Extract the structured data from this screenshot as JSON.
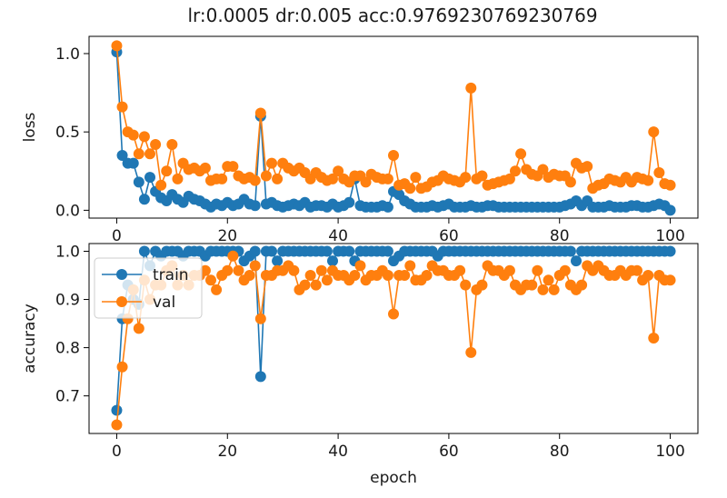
{
  "figure": {
    "title": "lr:0.0005 dr:0.005 acc:0.9769230769230769"
  },
  "colors": {
    "train": "#1f77b4",
    "val": "#ff7f0e",
    "axes": "#000000",
    "text": "#1a1a1a"
  },
  "chart_data": [
    {
      "type": "line",
      "markers": "circle",
      "title": "lr:0.0005 dr:0.005 acc:0.9769230769230769",
      "xlabel": "",
      "ylabel": "loss",
      "xlim": [
        -5,
        105
      ],
      "ylim": [
        -0.05,
        1.11
      ],
      "xticks": [
        0,
        20,
        40,
        60,
        80,
        100
      ],
      "yticks": [
        0.0,
        0.5,
        1.0
      ],
      "xtick_labels": [
        "0",
        "20",
        "40",
        "60",
        "80",
        "100"
      ],
      "ytick_labels": [
        "0.0",
        "0.5",
        "1.0"
      ],
      "grid": false,
      "legend": false,
      "series": [
        {
          "name": "train",
          "color": "#1f77b4",
          "values": [
            1.01,
            0.35,
            0.3,
            0.3,
            0.18,
            0.07,
            0.21,
            0.12,
            0.08,
            0.06,
            0.1,
            0.07,
            0.05,
            0.09,
            0.07,
            0.06,
            0.04,
            0.02,
            0.04,
            0.03,
            0.05,
            0.03,
            0.04,
            0.07,
            0.04,
            0.03,
            0.6,
            0.04,
            0.05,
            0.03,
            0.02,
            0.03,
            0.04,
            0.03,
            0.05,
            0.02,
            0.03,
            0.03,
            0.02,
            0.04,
            0.02,
            0.03,
            0.05,
            0.2,
            0.03,
            0.02,
            0.02,
            0.02,
            0.03,
            0.02,
            0.12,
            0.1,
            0.06,
            0.04,
            0.02,
            0.02,
            0.02,
            0.03,
            0.02,
            0.03,
            0.04,
            0.02,
            0.02,
            0.02,
            0.03,
            0.02,
            0.02,
            0.03,
            0.03,
            0.02,
            0.02,
            0.02,
            0.02,
            0.02,
            0.02,
            0.02,
            0.02,
            0.02,
            0.02,
            0.02,
            0.02,
            0.03,
            0.04,
            0.06,
            0.03,
            0.06,
            0.02,
            0.02,
            0.02,
            0.03,
            0.02,
            0.02,
            0.02,
            0.03,
            0.03,
            0.02,
            0.02,
            0.03,
            0.04,
            0.03,
            0.0
          ]
        },
        {
          "name": "val",
          "color": "#ff7f0e",
          "values": [
            1.05,
            0.66,
            0.5,
            0.48,
            0.36,
            0.47,
            0.36,
            0.42,
            0.16,
            0.25,
            0.42,
            0.2,
            0.3,
            0.26,
            0.27,
            0.25,
            0.27,
            0.19,
            0.2,
            0.2,
            0.28,
            0.28,
            0.22,
            0.2,
            0.21,
            0.19,
            0.62,
            0.22,
            0.3,
            0.2,
            0.3,
            0.27,
            0.25,
            0.27,
            0.24,
            0.2,
            0.24,
            0.21,
            0.19,
            0.2,
            0.25,
            0.2,
            0.18,
            0.22,
            0.22,
            0.18,
            0.23,
            0.21,
            0.2,
            0.2,
            0.35,
            0.16,
            0.17,
            0.14,
            0.21,
            0.14,
            0.15,
            0.18,
            0.19,
            0.22,
            0.2,
            0.19,
            0.18,
            0.21,
            0.78,
            0.2,
            0.22,
            0.16,
            0.17,
            0.18,
            0.19,
            0.2,
            0.25,
            0.36,
            0.26,
            0.23,
            0.22,
            0.26,
            0.21,
            0.23,
            0.22,
            0.22,
            0.18,
            0.3,
            0.27,
            0.28,
            0.14,
            0.16,
            0.17,
            0.2,
            0.19,
            0.18,
            0.21,
            0.18,
            0.21,
            0.2,
            0.19,
            0.5,
            0.24,
            0.17,
            0.16
          ]
        }
      ]
    },
    {
      "type": "line",
      "markers": "circle",
      "title": "",
      "xlabel": "epoch",
      "ylabel": "accuracy",
      "xlim": [
        -5,
        105
      ],
      "ylim": [
        0.622,
        1.016
      ],
      "xticks": [
        0,
        20,
        40,
        60,
        80,
        100
      ],
      "yticks": [
        0.7,
        0.8,
        0.9,
        1.0
      ],
      "xtick_labels": [
        "0",
        "20",
        "40",
        "60",
        "80",
        "100"
      ],
      "ytick_labels": [
        "0.7",
        "0.8",
        "0.9",
        "1.0"
      ],
      "grid": false,
      "legend": {
        "position": "upper-left",
        "entries": [
          "train",
          "val"
        ]
      },
      "series": [
        {
          "name": "train",
          "color": "#1f77b4",
          "values": [
            0.67,
            0.86,
            0.93,
            0.9,
            0.89,
            1.0,
            0.97,
            1.0,
            0.99,
            1.0,
            1.0,
            1.0,
            0.99,
            1.0,
            1.0,
            1.0,
            0.99,
            1.0,
            1.0,
            1.0,
            1.0,
            1.0,
            1.0,
            0.98,
            0.99,
            1.0,
            0.74,
            1.0,
            1.0,
            0.98,
            1.0,
            1.0,
            1.0,
            1.0,
            1.0,
            1.0,
            1.0,
            1.0,
            1.0,
            0.98,
            1.0,
            1.0,
            1.0,
            0.98,
            1.0,
            1.0,
            1.0,
            1.0,
            1.0,
            1.0,
            0.98,
            0.99,
            1.0,
            1.0,
            1.0,
            1.0,
            1.0,
            1.0,
            0.99,
            1.0,
            1.0,
            1.0,
            1.0,
            1.0,
            1.0,
            1.0,
            1.0,
            1.0,
            1.0,
            1.0,
            1.0,
            1.0,
            1.0,
            1.0,
            1.0,
            1.0,
            1.0,
            1.0,
            1.0,
            1.0,
            1.0,
            1.0,
            1.0,
            0.98,
            1.0,
            1.0,
            1.0,
            1.0,
            1.0,
            1.0,
            1.0,
            1.0,
            1.0,
            1.0,
            1.0,
            1.0,
            1.0,
            1.0,
            1.0,
            1.0,
            1.0
          ]
        },
        {
          "name": "val",
          "color": "#ff7f0e",
          "values": [
            0.64,
            0.76,
            0.86,
            0.92,
            0.84,
            0.94,
            0.9,
            0.93,
            0.93,
            0.96,
            0.97,
            0.93,
            0.95,
            0.93,
            0.95,
            0.95,
            0.96,
            0.94,
            0.92,
            0.95,
            0.96,
            0.99,
            0.96,
            0.94,
            0.95,
            0.97,
            0.86,
            0.95,
            0.95,
            0.96,
            0.96,
            0.97,
            0.96,
            0.92,
            0.93,
            0.95,
            0.93,
            0.96,
            0.94,
            0.96,
            0.95,
            0.95,
            0.94,
            0.95,
            0.97,
            0.94,
            0.95,
            0.95,
            0.96,
            0.95,
            0.87,
            0.95,
            0.95,
            0.97,
            0.94,
            0.94,
            0.95,
            0.97,
            0.96,
            0.96,
            0.95,
            0.95,
            0.96,
            0.93,
            0.79,
            0.92,
            0.93,
            0.97,
            0.96,
            0.96,
            0.95,
            0.96,
            0.93,
            0.92,
            0.93,
            0.93,
            0.96,
            0.92,
            0.94,
            0.92,
            0.95,
            0.96,
            0.93,
            0.92,
            0.93,
            0.97,
            0.96,
            0.97,
            0.96,
            0.95,
            0.95,
            0.96,
            0.95,
            0.96,
            0.96,
            0.94,
            0.95,
            0.82,
            0.95,
            0.94,
            0.94
          ]
        }
      ]
    }
  ]
}
